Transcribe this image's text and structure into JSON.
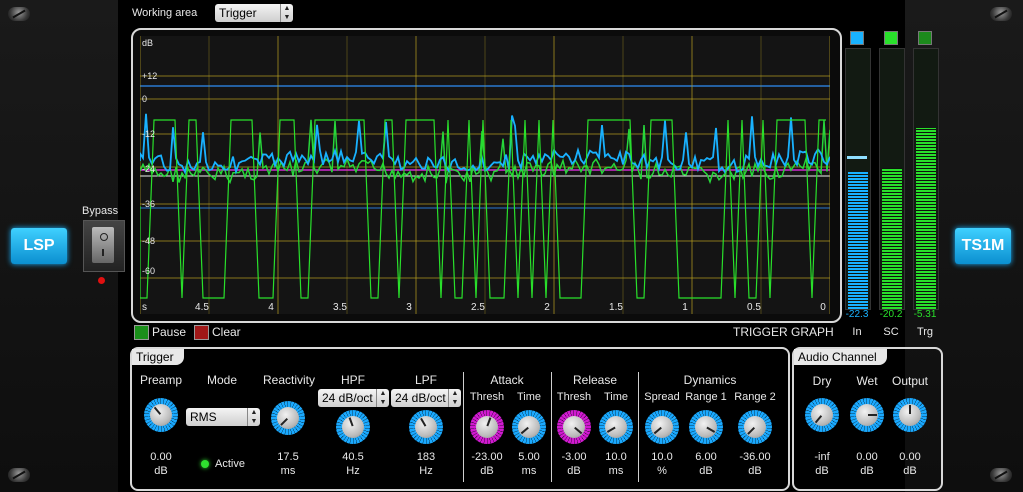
{
  "header": {
    "working_area_label": "Working area",
    "working_area_value": "Trigger"
  },
  "left": {
    "logo": "LSP",
    "bypass_label": "Bypass"
  },
  "right": {
    "logo": "TS1M"
  },
  "graph": {
    "unit_label": "dB",
    "y_ticks": [
      "+12",
      "0",
      "-12",
      "-24",
      "-36",
      "-48",
      "-60"
    ],
    "x_unit": "s",
    "x_ticks": [
      "4.5",
      "4",
      "3.5",
      "3",
      "2.5",
      "2",
      "1.5",
      "1",
      "0.5",
      "0"
    ],
    "title": "TRIGGER GRAPH",
    "pause_label": "Pause",
    "clear_label": "Clear"
  },
  "meters": [
    {
      "label": "In",
      "value": "-22.3",
      "color": "#19b2ff"
    },
    {
      "label": "SC",
      "value": "-20.2",
      "color": "#29e02b"
    },
    {
      "label": "Trg",
      "value": "-5.31",
      "color": "#29e02b"
    }
  ],
  "trigger": {
    "tab": "Trigger",
    "preamp": {
      "label": "Preamp",
      "value": "0.00",
      "unit": "dB"
    },
    "mode": {
      "label": "Mode",
      "value": "RMS",
      "active_label": "Active"
    },
    "reactivity": {
      "label": "Reactivity",
      "value": "17.5",
      "unit": "ms"
    },
    "hpf": {
      "label": "HPF",
      "slope": "24 dB/oct",
      "value": "40.5",
      "unit": "Hz"
    },
    "lpf": {
      "label": "LPF",
      "slope": "24 dB/oct",
      "value": "183",
      "unit": "Hz"
    },
    "attack": {
      "label": "Attack",
      "thresh_label": "Thresh",
      "time_label": "Time",
      "thresh_value": "-23.00",
      "thresh_unit": "dB",
      "time_value": "5.00",
      "time_unit": "ms"
    },
    "release": {
      "label": "Release",
      "thresh_label": "Thresh",
      "time_label": "Time",
      "thresh_value": "-3.00",
      "thresh_unit": "dB",
      "time_value": "10.0",
      "time_unit": "ms"
    },
    "dynamics": {
      "label": "Dynamics",
      "spread_label": "Spread",
      "range1_label": "Range 1",
      "range2_label": "Range 2",
      "spread_value": "10.0",
      "spread_unit": "%",
      "range1_value": "6.00",
      "range1_unit": "dB",
      "range2_value": "-36.00",
      "range2_unit": "dB"
    }
  },
  "audio_channel": {
    "tab": "Audio Channel",
    "dry": {
      "label": "Dry",
      "value": "-inf",
      "unit": "dB"
    },
    "wet": {
      "label": "Wet",
      "value": "0.00",
      "unit": "dB"
    },
    "output": {
      "label": "Output",
      "value": "0.00",
      "unit": "dB"
    }
  }
}
